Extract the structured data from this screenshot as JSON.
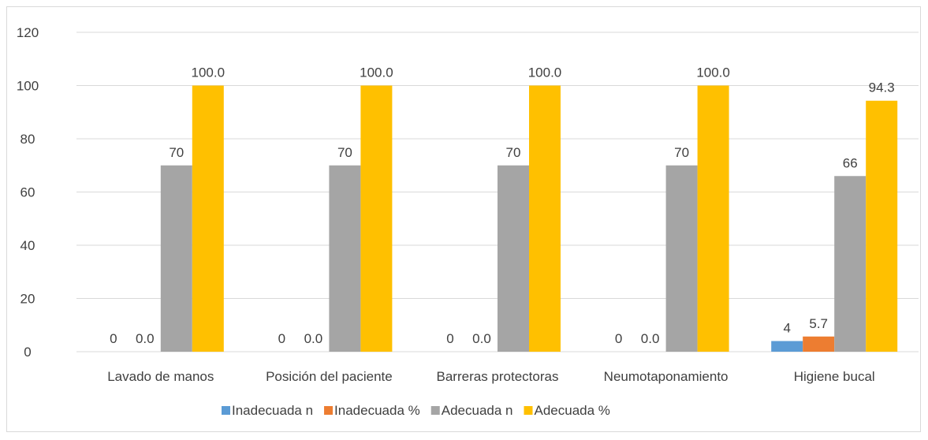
{
  "chart_data": {
    "type": "bar",
    "title": "",
    "xlabel": "",
    "ylabel": "",
    "ylim": [
      0,
      120
    ],
    "yticks": [
      0,
      20,
      40,
      60,
      80,
      100,
      120
    ],
    "grid": true,
    "legend_position": "bottom",
    "categories": [
      "Lavado de manos",
      "Posición del paciente",
      "Barreras protectoras",
      "Neumotaponamiento",
      "Higiene bucal"
    ],
    "series": [
      {
        "name": "Inadecuada n",
        "color": "#5b9bd5",
        "values": [
          0,
          0,
          0,
          0,
          4
        ],
        "labels": [
          "0",
          "0",
          "0",
          "0",
          "4"
        ]
      },
      {
        "name": "Inadecuada %",
        "color": "#ed7d31",
        "values": [
          0.0,
          0.0,
          0.0,
          0.0,
          5.7
        ],
        "labels": [
          "0.0",
          "0.0",
          "0.0",
          "0.0",
          "5.7"
        ]
      },
      {
        "name": "Adecuada n",
        "color": "#a5a5a5",
        "values": [
          70,
          70,
          70,
          70,
          66
        ],
        "labels": [
          "70",
          "70",
          "70",
          "70",
          "66"
        ]
      },
      {
        "name": "Adecuada %",
        "color": "#ffc000",
        "values": [
          100.0,
          100.0,
          100.0,
          100.0,
          94.3
        ],
        "labels": [
          "100.0",
          "100.0",
          "100.0",
          "100.0",
          "94.3"
        ]
      }
    ]
  }
}
